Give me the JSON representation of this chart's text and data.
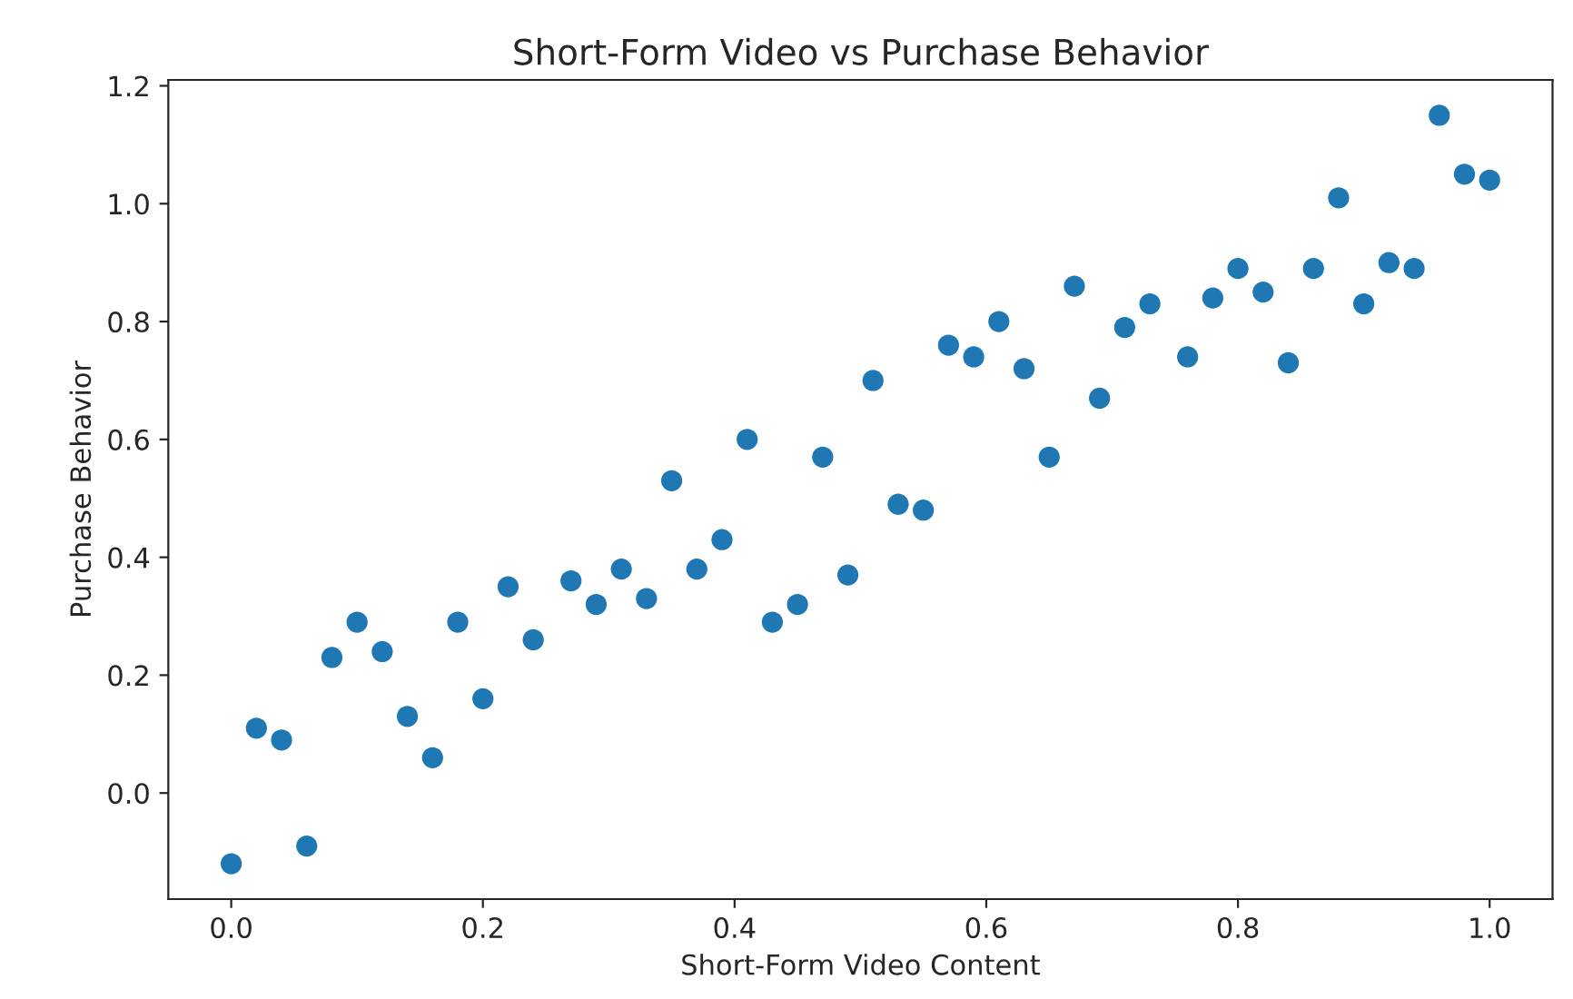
{
  "chart_data": {
    "type": "scatter",
    "title": "Short-Form Video vs Purchase Behavior",
    "xlabel": "Short-Form Video Content",
    "ylabel": "Purchase Behavior",
    "x": [
      0,
      0.02,
      0.04,
      0.06,
      0.08,
      0.1,
      0.12,
      0.14,
      0.16,
      0.18,
      0.2,
      0.22,
      0.24,
      0.27,
      0.29,
      0.31,
      0.33,
      0.35,
      0.37,
      0.39,
      0.41,
      0.43,
      0.45,
      0.47,
      0.49,
      0.51,
      0.53,
      0.55,
      0.57,
      0.59,
      0.61,
      0.63,
      0.65,
      0.67,
      0.69,
      0.71,
      0.73,
      0.76,
      0.78,
      0.8,
      0.82,
      0.84,
      0.86,
      0.88,
      0.9,
      0.92,
      0.94,
      0.96,
      0.98,
      1.0
    ],
    "series": [
      {
        "color": "#1f77b4",
        "values": [
          -0.12,
          0.11,
          0.09,
          -0.09,
          0.23,
          0.29,
          0.24,
          0.13,
          0.06,
          0.29,
          0.16,
          0.35,
          0.26,
          0.36,
          0.32,
          0.38,
          0.33,
          0.53,
          0.38,
          0.43,
          0.6,
          0.29,
          0.32,
          0.57,
          0.37,
          0.7,
          0.49,
          0.48,
          0.76,
          0.74,
          0.8,
          0.72,
          0.57,
          0.86,
          0.67,
          0.79,
          0.83,
          0.74,
          0.84,
          0.89,
          0.85,
          0.73,
          0.89,
          1.01,
          0.83,
          0.9,
          0.89,
          1.15,
          1.05,
          1.04
        ]
      }
    ],
    "xlim": [
      -0.05,
      1.05
    ],
    "ylim": [
      -0.18,
      1.21
    ],
    "xticks": [
      {
        "value": 0,
        "label": "0.0"
      },
      {
        "value": 0.2,
        "label": "0.2"
      },
      {
        "value": 0.4,
        "label": "0.4"
      },
      {
        "value": 0.6,
        "label": "0.6"
      },
      {
        "value": 0.8,
        "label": "0.8"
      },
      {
        "value": 1.0,
        "label": "1.0"
      }
    ],
    "yticks": [
      {
        "value": 0,
        "label": "0.0"
      },
      {
        "value": 0.2,
        "label": "0.2"
      },
      {
        "value": 0.4,
        "label": "0.4"
      },
      {
        "value": 0.6,
        "label": "0.6"
      },
      {
        "value": 0.8,
        "label": "0.8"
      },
      {
        "value": 1.0,
        "label": "1.0"
      },
      {
        "value": 1.2,
        "label": "1.2"
      }
    ],
    "marker": "circle"
  }
}
